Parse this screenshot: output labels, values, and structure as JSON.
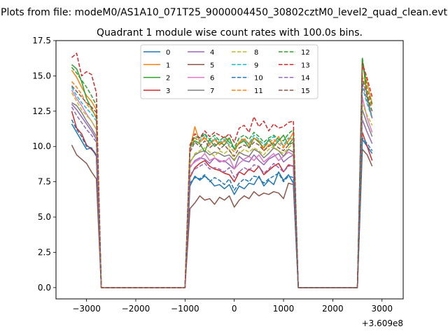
{
  "chart_data": {
    "type": "line",
    "suptitle": "Plots from file: modeM0/AS1A10_071T25_9000004450_30802cztM0_level2_quad_clean.evt",
    "title": "Quadrant 1 module wise count rates with 100.0s bins.",
    "xlabel": "",
    "ylabel": "",
    "x_offset_label": "+3.609e8",
    "xlim": [
      -3620,
      3430
    ],
    "ylim": [
      -0.8,
      17.5
    ],
    "xticks": [
      -3000,
      -2000,
      -1000,
      0,
      1000,
      2000,
      3000
    ],
    "xtick_labels": [
      "−3000",
      "−2000",
      "−1000",
      "0",
      "1000",
      "2000",
      "3000"
    ],
    "yticks": [
      0,
      2.5,
      5,
      7.5,
      10,
      12.5,
      15,
      17.5
    ],
    "ytick_labels": [
      "0.0",
      "2.5",
      "5.0",
      "7.5",
      "10.0",
      "12.5",
      "15.0",
      "17.5"
    ],
    "grid": false,
    "legend": {
      "placement": "top-center",
      "columns": 4
    },
    "x": [
      -3300,
      -3200,
      -3100,
      -3000,
      -2900,
      -2800,
      -2700,
      -2600,
      -2500,
      -2400,
      -2300,
      -2200,
      -2100,
      -2000,
      -1900,
      -1800,
      -1700,
      -1600,
      -1500,
      -1400,
      -1300,
      -1200,
      -1100,
      -1000,
      -900,
      -800,
      -700,
      -600,
      -500,
      -400,
      -300,
      -200,
      -100,
      0,
      100,
      200,
      300,
      400,
      500,
      600,
      700,
      800,
      900,
      1000,
      1100,
      1200,
      1300,
      1400,
      1500,
      1600,
      1700,
      1800,
      1900,
      2000,
      2100,
      2200,
      2300,
      2400,
      2500,
      2600,
      2700,
      2800,
      2900,
      3000,
      3100
    ],
    "series": [
      {
        "name": "0",
        "color": "#1f77b4",
        "dash": "solid",
        "active": [
          11.6,
          11.0,
          10.4,
          9.8,
          9.9,
          9.3
        ],
        "mid": [
          7.2,
          7.9,
          7.6,
          7.9,
          7.6,
          7.2,
          7.3,
          7.0,
          7.3,
          6.6,
          7.2,
          7.0,
          7.4,
          7.3,
          7.9,
          7.2,
          7.6,
          7.3,
          8.2,
          7.6,
          8.0,
          7.4
        ],
        "end": [
          10.5,
          10.0,
          9.5
        ]
      },
      {
        "name": "1",
        "color": "#ff7f0e",
        "dash": "solid",
        "active": [
          15.4,
          14.9,
          14.2,
          13.6,
          13.2,
          12.6
        ],
        "mid": [
          9.8,
          11.4,
          10.3,
          10.6,
          10.2,
          10.5,
          10.1,
          10.4,
          10.6,
          9.8,
          10.3,
          10.5,
          10.2,
          10.6,
          10.4,
          9.7,
          10.1,
          10.3,
          10.7,
          10.0,
          10.4,
          11.0
        ],
        "end": [
          15.8,
          14.5,
          13.0
        ]
      },
      {
        "name": "2",
        "color": "#2ca02c",
        "dash": "solid",
        "active": [
          15.8,
          15.5,
          14.6,
          13.4,
          12.7,
          12.0
        ],
        "mid": [
          9.9,
          10.4,
          10.2,
          9.6,
          10.5,
          10.0,
          10.3,
          10.1,
          10.6,
          9.8,
          10.2,
          10.4,
          9.9,
          10.6,
          10.3,
          9.9,
          10.5,
          10.0,
          10.4,
          10.8,
          10.1,
          10.6
        ],
        "end": [
          16.2,
          13.5,
          12.0
        ]
      },
      {
        "name": "3",
        "color": "#d62728",
        "dash": "solid",
        "active": [
          12.5,
          11.3,
          10.9,
          10.1,
          9.8,
          9.4
        ],
        "mid": [
          7.8,
          8.5,
          8.8,
          9.0,
          8.6,
          8.4,
          8.3,
          8.1,
          8.0,
          7.5,
          8.2,
          8.0,
          8.4,
          8.2,
          8.6,
          8.0,
          8.3,
          8.6,
          8.8,
          8.2,
          8.7,
          8.6
        ],
        "end": [
          11.0,
          10.0,
          9.0
        ]
      },
      {
        "name": "4",
        "color": "#9467bd",
        "dash": "solid",
        "active": [
          13.0,
          12.6,
          12.1,
          11.6,
          11.1,
          10.5
        ],
        "mid": [
          8.5,
          9.0,
          9.2,
          9.1,
          8.8,
          9.2,
          8.9,
          9.0,
          8.7,
          8.4,
          9.3,
          9.0,
          8.9,
          9.4,
          9.0,
          8.7,
          9.1,
          9.3,
          9.5,
          8.9,
          9.2,
          9.4
        ],
        "end": [
          11.9,
          11.0,
          10.2
        ]
      },
      {
        "name": "5",
        "color": "#8c564b",
        "dash": "solid",
        "active": [
          10.1,
          9.4,
          9.1,
          8.8,
          8.2,
          7.7
        ],
        "mid": [
          5.6,
          6.0,
          6.5,
          6.2,
          6.3,
          5.9,
          6.4,
          6.2,
          6.5,
          5.7,
          6.2,
          6.5,
          6.3,
          6.8,
          6.5,
          6.7,
          6.6,
          6.8,
          6.7,
          6.3,
          7.4,
          7.3
        ],
        "end": [
          9.8,
          9.4,
          8.6
        ]
      },
      {
        "name": "6",
        "color": "#e377c2",
        "dash": "solid",
        "active": [
          14.0,
          13.4,
          12.9,
          12.3,
          11.8,
          11.2
        ],
        "mid": [
          8.6,
          8.9,
          9.1,
          9.5,
          9.0,
          9.2,
          9.0,
          8.9,
          9.2,
          8.4,
          8.8,
          9.1,
          9.3,
          9.0,
          9.4,
          8.9,
          9.2,
          9.5,
          9.0,
          9.3,
          9.6,
          9.4
        ],
        "end": [
          13.5,
          12.0,
          11.0
        ]
      },
      {
        "name": "7",
        "color": "#7f7f7f",
        "dash": "solid",
        "active": [
          13.1,
          12.9,
          12.4,
          11.8,
          11.3,
          10.7
        ],
        "mid": [
          8.9,
          9.4,
          9.6,
          9.7,
          9.4,
          9.6,
          9.5,
          9.3,
          9.4,
          9.0,
          9.6,
          9.4,
          9.3,
          9.8,
          9.6,
          9.2,
          9.5,
          9.9,
          9.7,
          9.3,
          9.8,
          9.6
        ],
        "end": [
          12.6,
          11.6,
          10.7
        ]
      },
      {
        "name": "8",
        "color": "#bcbd22",
        "dash": "dashed",
        "active": [
          13.8,
          13.2,
          12.6,
          12.2,
          11.8,
          11.2
        ],
        "mid": [
          8.8,
          9.5,
          9.7,
          9.9,
          9.6,
          9.3,
          9.7,
          9.5,
          9.8,
          9.1,
          9.5,
          9.8,
          9.6,
          9.9,
          9.7,
          9.4,
          9.8,
          10.0,
          9.7,
          9.5,
          9.9,
          10.2
        ],
        "end": [
          13.0,
          12.2,
          11.5
        ]
      },
      {
        "name": "9",
        "color": "#17becf",
        "dash": "dashed",
        "active": [
          14.2,
          13.6,
          13.1,
          12.7,
          12.3,
          11.8
        ],
        "mid": [
          9.8,
          10.6,
          10.4,
          10.9,
          10.2,
          10.6,
          10.3,
          10.5,
          10.1,
          9.9,
          10.6,
          10.4,
          10.2,
          10.8,
          10.5,
          10.1,
          10.4,
          10.7,
          10.3,
          10.1,
          10.6,
          10.5
        ],
        "end": [
          14.2,
          13.0,
          12.0
        ]
      },
      {
        "name": "10",
        "color": "#1f77b4",
        "dash": "dashed",
        "active": [
          11.9,
          11.2,
          10.7,
          10.0,
          9.9,
          9.4
        ],
        "mid": [
          7.4,
          7.8,
          7.7,
          8.0,
          7.5,
          7.8,
          7.6,
          7.3,
          7.7,
          6.9,
          7.4,
          7.7,
          7.5,
          7.9,
          7.8,
          7.4,
          7.7,
          7.9,
          8.1,
          7.5,
          7.9,
          7.8
        ],
        "end": [
          10.6,
          10.2,
          9.7
        ]
      },
      {
        "name": "11",
        "color": "#ff7f0e",
        "dash": "dashed",
        "active": [
          14.6,
          14.2,
          13.7,
          13.0,
          12.6,
          12.1
        ],
        "mid": [
          9.9,
          10.6,
          10.3,
          10.7,
          10.1,
          10.5,
          10.2,
          10.4,
          10.0,
          9.6,
          10.3,
          10.6,
          10.1,
          10.6,
          10.4,
          9.9,
          10.3,
          10.5,
          10.2,
          9.9,
          10.5,
          10.6
        ],
        "end": [
          15.0,
          13.8,
          12.8
        ]
      },
      {
        "name": "12",
        "color": "#2ca02c",
        "dash": "dashed",
        "active": [
          15.6,
          15.2,
          14.7,
          14.2,
          13.6,
          12.9
        ],
        "mid": [
          10.0,
          10.7,
          10.6,
          10.9,
          10.5,
          10.8,
          10.4,
          10.7,
          10.3,
          9.9,
          10.6,
          10.8,
          10.5,
          11.0,
          10.7,
          10.3,
          10.6,
          10.8,
          10.5,
          10.4,
          10.9,
          11.2
        ],
        "end": [
          16.3,
          14.0,
          13.0
        ]
      },
      {
        "name": "13",
        "color": "#d62728",
        "dash": "dashed",
        "active": [
          16.3,
          16.6,
          15.0,
          15.3,
          15.1,
          13.8
        ],
        "mid": [
          10.1,
          10.9,
          10.6,
          11.1,
          10.7,
          11.0,
          10.8,
          10.6,
          10.9,
          10.3,
          11.3,
          11.5,
          11.0,
          12.1,
          11.4,
          11.8,
          11.1,
          11.6,
          11.3,
          11.4,
          11.7,
          11.8
        ],
        "end": [
          15.9,
          14.8,
          13.5
        ]
      },
      {
        "name": "14",
        "color": "#9467bd",
        "dash": "dashed",
        "active": [
          12.8,
          12.2,
          11.7,
          11.2,
          10.8,
          10.3
        ],
        "mid": [
          8.0,
          8.4,
          8.6,
          8.8,
          8.4,
          8.5,
          8.4,
          8.2,
          8.5,
          7.8,
          8.2,
          8.5,
          8.3,
          8.7,
          8.6,
          8.1,
          8.4,
          8.8,
          8.5,
          8.2,
          8.6,
          8.7
        ],
        "end": [
          14.5,
          13.2,
          12.0
        ]
      },
      {
        "name": "15",
        "color": "#8c564b",
        "dash": "dashed",
        "active": [
          14.3,
          13.9,
          13.5,
          13.1,
          12.8,
          12.4
        ],
        "mid": [
          9.6,
          10.3,
          10.0,
          10.4,
          9.9,
          10.2,
          9.8,
          10.1,
          9.7,
          9.3,
          9.9,
          10.1,
          9.9,
          10.3,
          10.1,
          9.7,
          10.0,
          10.2,
          9.9,
          9.7,
          10.1,
          10.3
        ],
        "end": [
          14.8,
          13.6,
          12.5
        ]
      }
    ]
  }
}
